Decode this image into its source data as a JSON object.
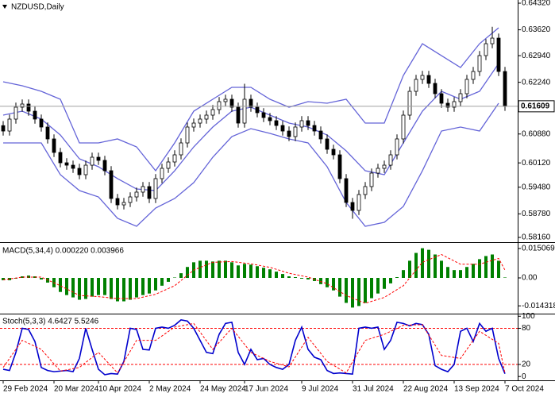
{
  "chart_data": [
    {
      "type": "candlestick",
      "title": "NZDUSD,Daily",
      "xlim": [
        -0.5,
        81
      ],
      "xticks": [
        {
          "value": 0,
          "label": "29 Feb 2024"
        },
        {
          "value": 8,
          "label": "20 Mar 2024"
        },
        {
          "value": 15,
          "label": "10 Apr 2024"
        },
        {
          "value": 23,
          "label": "2 May 2024"
        },
        {
          "value": 31,
          "label": "24 May 2024"
        },
        {
          "value": 38,
          "label": "17 Jun 2024"
        },
        {
          "value": 47,
          "label": "9 Jul 2024"
        },
        {
          "value": 55,
          "label": "31 Jul 2024"
        },
        {
          "value": 63,
          "label": "22 Aug 2024"
        },
        {
          "value": 71,
          "label": "13 Sep 2024"
        },
        {
          "value": 79,
          "label": "7 Oct 2024"
        }
      ],
      "ylim": [
        0.58056,
        0.64404
      ],
      "yticks": [
        {
          "value": 0.6432,
          "label": "0.64320"
        },
        {
          "value": 0.6362,
          "label": "0.63620"
        },
        {
          "value": 0.6294,
          "label": "0.62940"
        },
        {
          "value": 0.6224,
          "label": "0.62240"
        },
        {
          "value": 0.6088,
          "label": "0.60880"
        },
        {
          "value": 0.6012,
          "label": "0.60120"
        },
        {
          "value": 0.5948,
          "label": "0.59480"
        },
        {
          "value": 0.5878,
          "label": "0.58780"
        },
        {
          "value": 0.5816,
          "label": "0.58160"
        }
      ],
      "up_color": "#ffffff",
      "down_color": "#000000",
      "ohlc": [
        [
          0.611,
          0.6122,
          0.60838,
          0.60958
        ],
        [
          0.60958,
          0.61392,
          0.60838,
          0.61272
        ],
        [
          0.61272,
          0.61705,
          0.61152,
          0.61585
        ],
        [
          0.61585,
          0.61788,
          0.61465,
          0.61668
        ],
        [
          0.61668,
          0.61788,
          0.6136,
          0.6148
        ],
        [
          0.6148,
          0.616,
          0.61152,
          0.61272
        ],
        [
          0.61272,
          0.61392,
          0.60943,
          0.61063
        ],
        [
          0.61063,
          0.61183,
          0.6063,
          0.6075
        ],
        [
          0.6075,
          0.6087,
          0.60275,
          0.60395
        ],
        [
          0.60395,
          0.60515,
          0.60003,
          0.60123
        ],
        [
          0.60123,
          0.60243,
          0.5994,
          0.6006
        ],
        [
          0.6006,
          0.6018,
          0.59857,
          0.59977
        ],
        [
          0.59977,
          0.60097,
          0.5969,
          0.5981
        ],
        [
          0.5981,
          0.6018,
          0.5969,
          0.6006
        ],
        [
          0.6006,
          0.60389,
          0.5994,
          0.60269
        ],
        [
          0.60269,
          0.60389,
          0.60066,
          0.60186
        ],
        [
          0.60186,
          0.60306,
          0.59794,
          0.59914
        ],
        [
          0.59914,
          0.60034,
          0.59064,
          0.59184
        ],
        [
          0.59184,
          0.59304,
          0.58896,
          0.59016
        ],
        [
          0.59016,
          0.59199,
          0.58896,
          0.59079
        ],
        [
          0.59079,
          0.59345,
          0.58959,
          0.59225
        ],
        [
          0.59225,
          0.59471,
          0.59105,
          0.59351
        ],
        [
          0.59351,
          0.59617,
          0.59231,
          0.59497
        ],
        [
          0.59497,
          0.59617,
          0.59064,
          0.59184
        ],
        [
          0.59184,
          0.59826,
          0.59064,
          0.59706
        ],
        [
          0.59706,
          0.60097,
          0.59586,
          0.59977
        ],
        [
          0.59977,
          0.60264,
          0.59857,
          0.60144
        ],
        [
          0.60144,
          0.60452,
          0.60024,
          0.60332
        ],
        [
          0.60332,
          0.60765,
          0.60212,
          0.60645
        ],
        [
          0.60645,
          0.61183,
          0.60525,
          0.61063
        ],
        [
          0.61063,
          0.61287,
          0.60943,
          0.61167
        ],
        [
          0.61167,
          0.61392,
          0.61047,
          0.61272
        ],
        [
          0.61272,
          0.61496,
          0.61152,
          0.61376
        ],
        [
          0.61376,
          0.61642,
          0.61256,
          0.61522
        ],
        [
          0.61522,
          0.61851,
          0.61402,
          0.61731
        ],
        [
          0.61731,
          0.61914,
          0.61611,
          0.61794
        ],
        [
          0.61794,
          0.61914,
          0.61465,
          0.61585
        ],
        [
          0.61585,
          0.61705,
          0.61047,
          0.61167
        ],
        [
          0.61167,
          0.622,
          0.61047,
          0.61794
        ],
        [
          0.61794,
          0.61914,
          0.61465,
          0.61585
        ],
        [
          0.61585,
          0.61705,
          0.61319,
          0.61439
        ],
        [
          0.61439,
          0.61559,
          0.61193,
          0.61313
        ],
        [
          0.61313,
          0.61433,
          0.6111,
          0.6123
        ],
        [
          0.6123,
          0.6135,
          0.60984,
          0.61104
        ],
        [
          0.61104,
          0.61224,
          0.60838,
          0.60958
        ],
        [
          0.60958,
          0.61078,
          0.60692,
          0.60812
        ],
        [
          0.60812,
          0.61183,
          0.60692,
          0.61063
        ],
        [
          0.61063,
          0.6135,
          0.60943,
          0.6123
        ],
        [
          0.6123,
          0.6135,
          0.60984,
          0.61104
        ],
        [
          0.61104,
          0.61224,
          0.60838,
          0.60958
        ],
        [
          0.60958,
          0.61078,
          0.6063,
          0.6075
        ],
        [
          0.6075,
          0.6087,
          0.60358,
          0.60478
        ],
        [
          0.60478,
          0.60598,
          0.60212,
          0.60332
        ],
        [
          0.60332,
          0.60452,
          0.59586,
          0.59706
        ],
        [
          0.59706,
          0.59826,
          0.58959,
          0.59079
        ],
        [
          0.59079,
          0.59199,
          0.5865,
          0.5887
        ],
        [
          0.5887,
          0.59408,
          0.5875,
          0.59288
        ],
        [
          0.59288,
          0.59617,
          0.59168,
          0.59497
        ],
        [
          0.59497,
          0.59972,
          0.59377,
          0.59852
        ],
        [
          0.59852,
          0.60097,
          0.59732,
          0.59977
        ],
        [
          0.59977,
          0.6018,
          0.59857,
          0.6006
        ],
        [
          0.6006,
          0.60452,
          0.5994,
          0.60332
        ],
        [
          0.60332,
          0.6087,
          0.60212,
          0.6075
        ],
        [
          0.6075,
          0.61496,
          0.6063,
          0.61376
        ],
        [
          0.61376,
          0.62122,
          0.61256,
          0.62002
        ],
        [
          0.62002,
          0.62436,
          0.61882,
          0.62316
        ],
        [
          0.62316,
          0.6254,
          0.62196,
          0.6242
        ],
        [
          0.6242,
          0.6254,
          0.62091,
          0.62211
        ],
        [
          0.62211,
          0.62331,
          0.6182,
          0.6194
        ],
        [
          0.6194,
          0.6206,
          0.61569,
          0.61689
        ],
        [
          0.61689,
          0.61809,
          0.61465,
          0.61585
        ],
        [
          0.61585,
          0.61851,
          0.61465,
          0.61731
        ],
        [
          0.61731,
          0.6206,
          0.61611,
          0.6194
        ],
        [
          0.6194,
          0.62436,
          0.6182,
          0.62316
        ],
        [
          0.62316,
          0.62644,
          0.62196,
          0.62524
        ],
        [
          0.62524,
          0.63062,
          0.62404,
          0.62942
        ],
        [
          0.62942,
          0.63375,
          0.62822,
          0.63255
        ],
        [
          0.63255,
          0.637,
          0.63135,
          0.63401
        ],
        [
          0.63401,
          0.63521,
          0.62404,
          0.62524
        ],
        [
          0.62524,
          0.62644,
          0.61489,
          0.61609
        ]
      ],
      "bands": {
        "color": "#6464d8",
        "x": [
          0,
          3,
          6,
          9,
          12,
          15,
          18,
          21,
          24,
          27,
          30,
          33,
          36,
          39,
          42,
          45,
          48,
          51,
          54,
          57,
          60,
          63,
          66,
          69,
          72,
          75,
          78
        ],
        "upper": [
          0.62253,
          0.62148,
          0.62002,
          0.61794,
          0.60645,
          0.60645,
          0.6075,
          0.60541,
          0.59914,
          0.60645,
          0.6148,
          0.61794,
          0.62107,
          0.62107,
          0.61794,
          0.61585,
          0.61731,
          0.61689,
          0.61794,
          0.61167,
          0.61167,
          0.6242,
          0.63255,
          0.62942,
          0.62629,
          0.63255,
          0.63673
        ],
        "middle": [
          0.61376,
          0.6148,
          0.61272,
          0.60854,
          0.60228,
          0.60019,
          0.59706,
          0.59434,
          0.59392,
          0.59914,
          0.60541,
          0.61063,
          0.6148,
          0.61585,
          0.61376,
          0.61167,
          0.61063,
          0.60854,
          0.60436,
          0.59914,
          0.5981,
          0.60645,
          0.6148,
          0.62002,
          0.61794,
          0.62002,
          0.62733
        ],
        "lower": [
          0.60645,
          0.60645,
          0.60645,
          0.5981,
          0.59392,
          0.59225,
          0.58662,
          0.58453,
          0.58933,
          0.59184,
          0.59601,
          0.60269,
          0.60812,
          0.61021,
          0.60896,
          0.6075,
          0.60645,
          0.60019,
          0.59079,
          0.58453,
          0.58557,
          0.58975,
          0.59914,
          0.60958,
          0.61063,
          0.60958,
          0.61689
        ]
      }
    },
    {
      "type": "bar",
      "title": "MACD(5,34,4) 0.000220 0.003966",
      "color": "#008000",
      "ylim": [
        -0.0179,
        0.0179
      ],
      "yticks": [
        0.015069,
        {
          "value": 0,
          "label": "0.00"
        },
        -0.014318
      ],
      "values": [
        -0.0012,
        -0.0012,
        -0.0004,
        0.0008,
        0.0012,
        0.0008,
        -0.0008,
        -0.0024,
        -0.0048,
        -0.0072,
        -0.0088,
        -0.01,
        -0.0112,
        -0.0108,
        -0.0096,
        -0.0088,
        -0.0088,
        -0.0108,
        -0.012,
        -0.012,
        -0.0112,
        -0.01,
        -0.0088,
        -0.008,
        -0.0064,
        -0.004,
        -0.002,
        0.0002,
        0.0024,
        0.0056,
        0.008,
        0.0088,
        0.0088,
        0.0084,
        0.0088,
        0.0088,
        0.008,
        0.0064,
        0.0072,
        0.0068,
        0.006,
        0.0052,
        0.0044,
        0.0032,
        0.002,
        0.0008,
        0.0004,
        -0.0004,
        -0.0008,
        -0.0016,
        -0.0032,
        -0.0048,
        -0.0064,
        -0.0096,
        -0.0128,
        -0.0152,
        -0.0144,
        -0.0128,
        -0.0104,
        -0.008,
        -0.0056,
        -0.0028,
        0.0004,
        0.004,
        0.0088,
        0.0128,
        0.0152,
        0.0144,
        0.012,
        0.0088,
        0.0056,
        0.004,
        0.004,
        0.0056,
        0.0072,
        0.0096,
        0.0112,
        0.012,
        0.0088,
        0.00022
      ],
      "signal": {
        "color": "#ff0000",
        "x": [
          0,
          3,
          6,
          9,
          12,
          15,
          18,
          21,
          24,
          27,
          30,
          33,
          36,
          39,
          42,
          45,
          48,
          51,
          54,
          57,
          60,
          63,
          66,
          69,
          72,
          75,
          78,
          79
        ],
        "values": [
          -0.001,
          0.0004,
          0.0004,
          -0.004,
          -0.009,
          -0.0096,
          -0.0106,
          -0.0106,
          -0.0084,
          -0.004,
          0.004,
          0.008,
          0.0084,
          0.0072,
          0.0054,
          0.0024,
          0.0004,
          -0.003,
          -0.009,
          -0.013,
          -0.01,
          -0.004,
          0.008,
          0.012,
          0.007,
          0.007,
          0.01,
          0.003966
        ]
      }
    },
    {
      "type": "line",
      "title": "Stoch(5,3,3) 4.6427 5.5246",
      "ylim": [
        -5,
        103
      ],
      "yticks": [
        0,
        20,
        80,
        100
      ],
      "levels": [
        20,
        80
      ],
      "level_color": "#ff0000",
      "k": {
        "color": "#0000cd",
        "values": [
          12,
          10,
          40,
          80,
          78,
          58,
          15,
          10,
          8,
          9,
          10,
          8,
          30,
          80,
          45,
          12,
          3,
          5,
          4,
          25,
          80,
          78,
          45,
          44,
          80,
          82,
          80,
          85,
          94,
          92,
          80,
          60,
          40,
          38,
          70,
          88,
          90,
          40,
          20,
          45,
          28,
          30,
          20,
          15,
          12,
          20,
          60,
          82,
          45,
          32,
          28,
          10,
          5,
          6,
          5,
          4,
          80,
          82,
          80,
          82,
          45,
          60,
          90,
          88,
          84,
          88,
          86,
          70,
          18,
          12,
          8,
          20,
          75,
          80,
          58,
          88,
          75,
          80,
          30,
          4.6427
        ]
      },
      "d": {
        "color": "#ff0000",
        "x": [
          0,
          3,
          6,
          9,
          12,
          15,
          18,
          21,
          24,
          27,
          30,
          33,
          36,
          39,
          42,
          45,
          48,
          51,
          54,
          57,
          60,
          63,
          66,
          69,
          72,
          75,
          78,
          79
        ],
        "values": [
          15,
          60,
          45,
          9,
          15,
          40,
          6,
          60,
          60,
          82,
          88,
          45,
          80,
          40,
          25,
          16,
          65,
          25,
          6,
          60,
          70,
          85,
          86,
          35,
          30,
          75,
          55,
          5.5246
        ]
      }
    }
  ]
}
